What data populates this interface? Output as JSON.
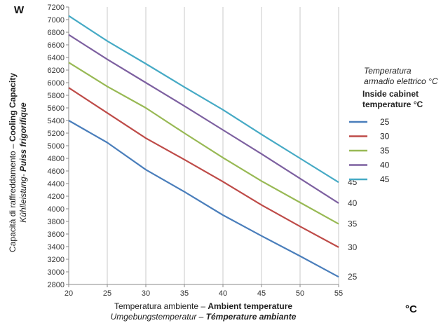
{
  "chart_data": {
    "type": "line",
    "y_unit": "W",
    "x_unit": "°C",
    "ylabel_line1_normal": "Capacità di raffreddamento – ",
    "ylabel_line1_bold": "Cooling Capacity",
    "ylabel_line2_italic": "Kühlleistung-",
    "ylabel_line2_bolditalic": " Puiss frigorifique",
    "xlabel_line1_normal": "Temperatura ambiente – ",
    "xlabel_line1_bold": "Ambient temperature",
    "xlabel_line2_italic": "Umgebungstemperatur – ",
    "xlabel_line2_bolditalic": "Témperature ambiante",
    "legend_title_line1": "Temperatura",
    "legend_title_line2": "armadio elettrico °C",
    "legend_title_line3": "Inside cabinet",
    "legend_title_line4": "temperature °C",
    "xlim": [
      20,
      55
    ],
    "ylim": [
      2800,
      7200
    ],
    "x_ticks": [
      "20",
      "25",
      "30",
      "35",
      "40",
      "45",
      "50",
      "55"
    ],
    "y_ticks": [
      "2800",
      "3000",
      "3200",
      "3400",
      "3600",
      "3800",
      "4000",
      "4200",
      "4400",
      "4600",
      "4800",
      "5000",
      "5200",
      "5400",
      "5600",
      "5800",
      "6000",
      "6200",
      "6400",
      "6600",
      "6800",
      "7000",
      "7200"
    ],
    "grid": {
      "horizontal": false,
      "vertical": true
    },
    "legend_position": "right",
    "x": [
      20,
      25,
      30,
      35,
      40,
      45,
      50,
      55
    ],
    "series": [
      {
        "name": "25",
        "end_label": "25",
        "color": "#4a7ebb",
        "values": [
          5400,
          5050,
          4620,
          4270,
          3900,
          3570,
          3250,
          2920
        ]
      },
      {
        "name": "30",
        "end_label": "30",
        "color": "#be4b48",
        "values": [
          5920,
          5520,
          5120,
          4780,
          4430,
          4060,
          3720,
          3390
        ]
      },
      {
        "name": "35",
        "end_label": "35",
        "color": "#98b954",
        "values": [
          6320,
          5940,
          5600,
          5200,
          4810,
          4440,
          4100,
          3760
        ]
      },
      {
        "name": "40",
        "end_label": "40",
        "color": "#7d60a0",
        "values": [
          6760,
          6370,
          6000,
          5630,
          5250,
          4870,
          4480,
          4090
        ]
      },
      {
        "name": "45",
        "end_label": "45",
        "color": "#46aac5",
        "values": [
          7060,
          6660,
          6300,
          5930,
          5570,
          5180,
          4800,
          4420
        ]
      }
    ]
  }
}
